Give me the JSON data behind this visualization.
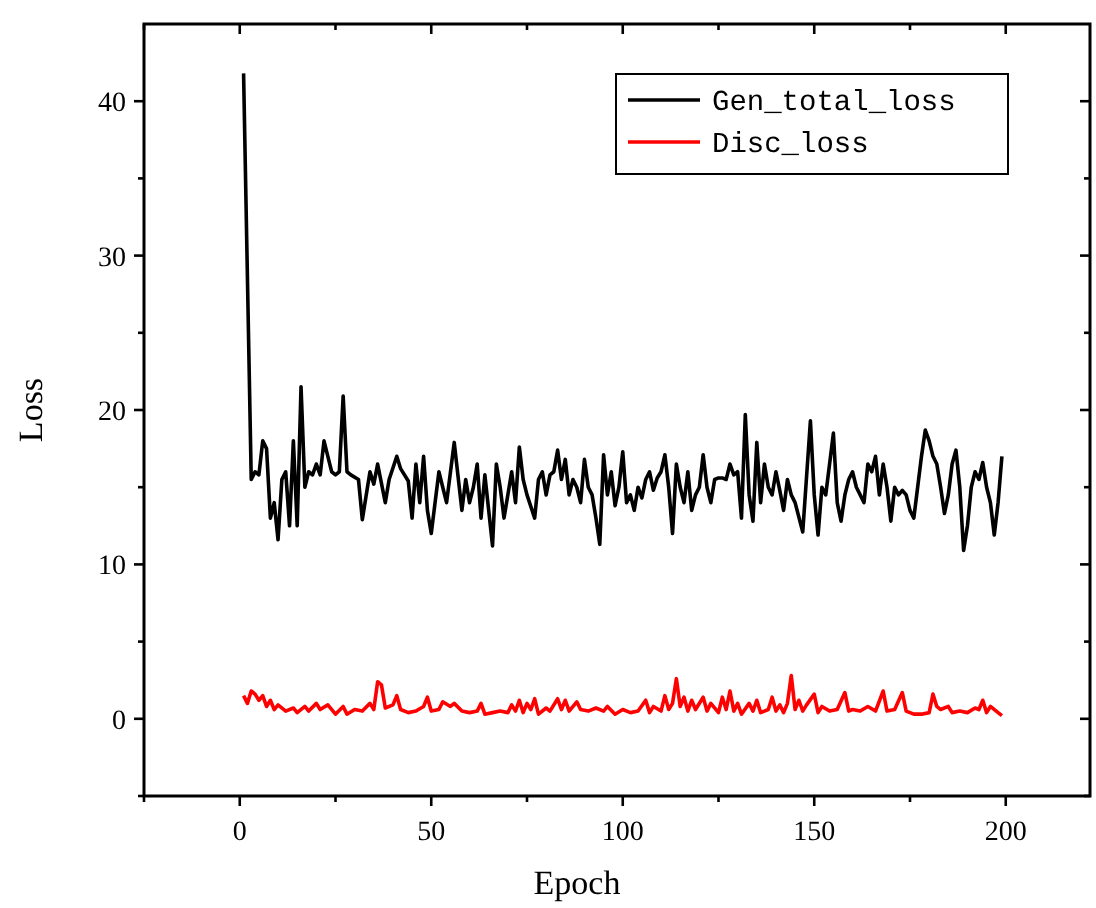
{
  "chart_data": {
    "type": "line",
    "xlabel": "Epoch",
    "ylabel": "Loss",
    "xlim": [
      -25,
      222
    ],
    "ylim": [
      -5,
      45
    ],
    "xticks": [
      {
        "value": -25,
        "label": null
      },
      0,
      {
        "value": 25,
        "label": null
      },
      50,
      {
        "value": 75,
        "label": null
      },
      100,
      {
        "value": 125,
        "label": null
      },
      150,
      {
        "value": 175,
        "label": null
      },
      200
    ],
    "yticks": [
      {
        "value": -5,
        "label": null
      },
      0,
      {
        "value": 5,
        "label": null
      },
      10,
      {
        "value": 15,
        "label": null
      },
      20,
      {
        "value": 25,
        "label": null
      },
      30,
      {
        "value": 35,
        "label": null
      },
      40
    ],
    "grid": false,
    "legend": "top right",
    "marker": "none",
    "line_style": "solid",
    "series": [
      {
        "name": "Gen_total_loss",
        "color": "#000000",
        "x": [
          1,
          3,
          4,
          5,
          6,
          7,
          8,
          9,
          10,
          11,
          12,
          13,
          14,
          15,
          16,
          17,
          18,
          19,
          20,
          21,
          22,
          23,
          24,
          25,
          26,
          27,
          28,
          29,
          31,
          32,
          34,
          35,
          36,
          38,
          39,
          41,
          42,
          44,
          45,
          46,
          47,
          48,
          49,
          50,
          52,
          53,
          54,
          56,
          58,
          59,
          60,
          61,
          62,
          63,
          64,
          66,
          67,
          68,
          69,
          71,
          72,
          73,
          74,
          75,
          77,
          78,
          79,
          80,
          81,
          82,
          83,
          84,
          85,
          86,
          87,
          88,
          89,
          90,
          91,
          92,
          93,
          94,
          95,
          96,
          97,
          98,
          99,
          100,
          101,
          102,
          103,
          104,
          105,
          106,
          107,
          108,
          109,
          110,
          111,
          112,
          113,
          114,
          115,
          116,
          117,
          118,
          119,
          120,
          121,
          122,
          123,
          124,
          125,
          126,
          127,
          128,
          129,
          130,
          131,
          132,
          133,
          134,
          135,
          136,
          137,
          138,
          139,
          140,
          141,
          142,
          143,
          144,
          145,
          147,
          149,
          150,
          151,
          152,
          153,
          155,
          156,
          157,
          158,
          159,
          160,
          161,
          162,
          163,
          164,
          165,
          166,
          167,
          168,
          169,
          170,
          171,
          172,
          173,
          174,
          175,
          176,
          177,
          178,
          179,
          180,
          181,
          182,
          183,
          184,
          185,
          186,
          187,
          188,
          189,
          190,
          191,
          192,
          193,
          194,
          195,
          196,
          197,
          198,
          199
        ],
        "values": [
          41.8,
          15.5,
          16,
          15.8,
          18,
          17.5,
          13,
          14,
          11.6,
          15.5,
          16,
          12.5,
          18,
          12.5,
          21.5,
          15,
          16,
          15.8,
          16.5,
          15.8,
          18,
          17,
          16,
          15.8,
          16,
          20.9,
          16,
          15.8,
          15.5,
          12.9,
          16,
          15.2,
          16.5,
          14,
          15.5,
          17,
          16.2,
          15.4,
          13,
          16.5,
          14,
          17,
          13.5,
          12,
          16,
          15,
          14,
          17.9,
          13.5,
          15.5,
          14,
          15,
          16.5,
          13,
          15.8,
          11.2,
          16.5,
          15,
          13,
          16,
          14,
          17.6,
          15.5,
          14.5,
          13,
          15.5,
          16,
          14.5,
          15.8,
          16,
          17.4,
          15.5,
          16.8,
          14.5,
          15.5,
          15,
          14,
          16.8,
          15,
          14.5,
          13,
          11.3,
          17.1,
          14.5,
          16,
          13.8,
          15,
          17.3,
          14,
          14.5,
          13.5,
          15,
          14.3,
          15.5,
          16,
          14.8,
          15.6,
          16,
          17.1,
          15,
          12,
          16.5,
          15,
          14,
          16,
          13.5,
          14.5,
          15,
          17.1,
          15,
          14,
          15.5,
          15.6,
          15.6,
          15.5,
          16.5,
          15.8,
          16,
          13,
          19.7,
          14.5,
          12.8,
          17.9,
          14,
          16.5,
          15,
          14.5,
          16,
          14.8,
          13.5,
          15.5,
          14.5,
          14,
          12.1,
          19.3,
          14.5,
          11.9,
          15,
          14.5,
          18.5,
          14,
          12.8,
          14.5,
          15.5,
          16,
          15,
          14.5,
          14,
          16.5,
          16,
          17,
          14.5,
          16.5,
          15,
          12.8,
          15,
          14.5,
          14.8,
          14.5,
          13.5,
          13,
          15,
          17,
          18.7,
          18,
          17,
          16.5,
          15,
          13.3,
          14.5,
          16.5,
          17.4,
          15,
          10.9,
          12.5,
          15,
          16,
          15.5,
          16.6,
          15,
          14,
          11.9,
          14,
          17
        ]
      },
      {
        "name": "Disc_loss",
        "color": "#ff0000",
        "x": [
          1,
          2,
          3,
          4,
          5,
          6,
          7,
          8,
          9,
          10,
          12,
          14,
          15,
          17,
          18,
          20,
          21,
          23,
          25,
          27,
          28,
          30,
          32,
          34,
          35,
          36,
          37,
          38,
          40,
          41,
          42,
          44,
          46,
          48,
          49,
          50,
          52,
          53,
          55,
          56,
          58,
          60,
          62,
          63,
          64,
          66,
          68,
          70,
          71,
          72,
          73,
          74,
          75,
          76,
          77,
          78,
          80,
          81,
          83,
          84,
          85,
          86,
          88,
          89,
          91,
          93,
          95,
          96,
          98,
          100,
          102,
          104,
          106,
          107,
          108,
          110,
          111,
          112,
          113,
          114,
          115,
          116,
          117,
          118,
          119,
          121,
          122,
          123,
          125,
          126,
          127,
          128,
          129,
          130,
          131,
          133,
          134,
          135,
          136,
          138,
          139,
          140,
          141,
          142,
          143,
          144,
          145,
          146,
          147,
          148,
          150,
          151,
          152,
          154,
          156,
          158,
          159,
          160,
          162,
          164,
          166,
          168,
          169,
          171,
          173,
          174,
          176,
          178,
          180,
          181,
          182,
          183,
          185,
          186,
          188,
          190,
          192,
          193,
          194,
          195,
          196,
          198,
          199
        ],
        "values": [
          1.5,
          1,
          1.8,
          1.6,
          1.2,
          1.5,
          0.8,
          1.2,
          0.6,
          0.9,
          0.5,
          0.7,
          0.4,
          0.8,
          0.5,
          1,
          0.6,
          0.9,
          0.3,
          0.8,
          0.3,
          0.6,
          0.5,
          1,
          0.6,
          2.4,
          2.2,
          0.7,
          0.9,
          1.5,
          0.6,
          0.4,
          0.5,
          0.8,
          1.4,
          0.5,
          0.6,
          1.1,
          0.8,
          1.0,
          0.5,
          0.4,
          0.5,
          1,
          0.3,
          0.4,
          0.5,
          0.4,
          0.9,
          0.5,
          1.2,
          0.4,
          1.0,
          0.6,
          1.3,
          0.3,
          0.7,
          0.5,
          1.3,
          0.6,
          1.2,
          0.5,
          1.1,
          0.6,
          0.5,
          0.7,
          0.5,
          0.8,
          0.3,
          0.6,
          0.4,
          0.5,
          1.2,
          0.4,
          0.8,
          0.5,
          1.5,
          0.6,
          1.0,
          2.6,
          0.8,
          1.4,
          0.5,
          1.2,
          0.6,
          1.4,
          0.5,
          1.0,
          0.4,
          1.4,
          0.6,
          1.8,
          0.5,
          1.0,
          0.3,
          1.0,
          0.5,
          1.2,
          0.4,
          0.6,
          1.4,
          0.5,
          0.9,
          0.4,
          1.0,
          2.8,
          0.6,
          1.2,
          0.5,
          0.9,
          1.6,
          0.4,
          0.8,
          0.5,
          0.6,
          1.7,
          0.5,
          0.6,
          0.5,
          0.8,
          0.5,
          1.8,
          0.5,
          0.6,
          1.7,
          0.5,
          0.3,
          0.3,
          0.4,
          1.6,
          0.8,
          0.6,
          0.8,
          0.4,
          0.5,
          0.4,
          0.7,
          0.6,
          1.2,
          0.4,
          0.8,
          0.4,
          0.2
        ]
      }
    ]
  }
}
